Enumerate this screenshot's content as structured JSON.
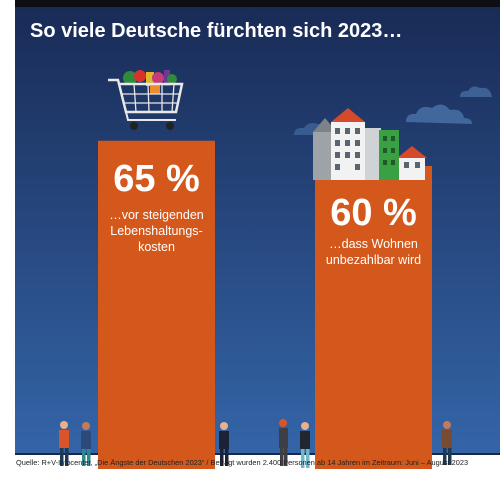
{
  "title": "So viele Deutsche fürchten sich 2023…",
  "chart_data": {
    "type": "bar",
    "title": "So viele Deutsche fürchten sich 2023…",
    "unit": "%",
    "ylim": [
      0,
      100
    ],
    "categories": [
      "…vor steigenden Lebenshaltungs-kosten",
      "…dass Wohnen unbezahlbar wird"
    ],
    "values": [
      65,
      60
    ],
    "value_labels": [
      "65 %",
      "60 %"
    ],
    "description_lines": [
      [
        "…vor steigenden",
        "Lebenshaltungs-",
        "kosten"
      ],
      [
        "…dass Wohnen",
        "unbezahlbar wird"
      ]
    ],
    "bar_color": "#d4571b"
  },
  "colors": {
    "sky_top": "#192a55",
    "sky_bottom": "#3465a8",
    "bar": "#d4571b",
    "ground_line": "#1b2749"
  },
  "icons": [
    "shopping-cart-icon",
    "houses-icon",
    "cloud-icon",
    "people-icon"
  ],
  "source": "Quelle: R+V-Infocenter, „Die Ängste der Deutschen 2023“  /  Befragt wurden 2.400 Personen ab 14 Jahren im Zeitraum: Juni – August 2023"
}
